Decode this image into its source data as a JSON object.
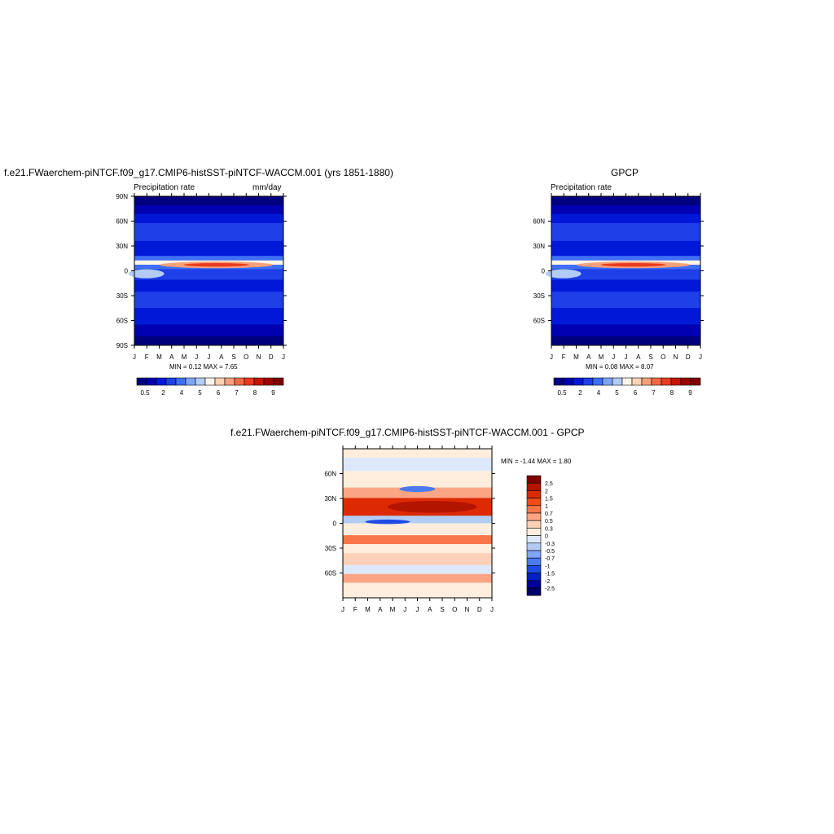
{
  "chart_data": [
    {
      "type": "heatmap",
      "title": "f.e21.FWaerchem-piNTCF.f09_g17.CMIP6-histSST-piNTCF-WACCM.001 (yrs 1851-1880)",
      "left_label": "Precipitation rate",
      "right_label": "mm/day",
      "x_ticks": [
        "J",
        "F",
        "M",
        "A",
        "M",
        "J",
        "J",
        "A",
        "S",
        "O",
        "N",
        "D",
        "J"
      ],
      "y_ticks": [
        "90N",
        "60N",
        "30N",
        "0",
        "30S",
        "60S",
        "90S"
      ],
      "stats": "MIN =   0.12 MAX =   7.65",
      "colorbar_labels": [
        "0.5",
        "2",
        "4",
        "5",
        "6",
        "7",
        "8",
        "9"
      ]
    },
    {
      "type": "heatmap",
      "title": "GPCP",
      "left_label": "Precipitation rate",
      "x_ticks": [
        "J",
        "F",
        "M",
        "A",
        "M",
        "J",
        "J",
        "A",
        "S",
        "O",
        "N",
        "D",
        "J"
      ],
      "y_ticks": [
        "60N",
        "30N",
        "0",
        "30S",
        "60S"
      ],
      "stats": "MIN =   0.08 MAX =   8.07",
      "colorbar_labels": [
        "0.5",
        "2",
        "4",
        "5",
        "6",
        "7",
        "8",
        "9"
      ]
    },
    {
      "type": "heatmap",
      "title": "f.e21.FWaerchem-piNTCF.f09_g17.CMIP6-histSST-piNTCF-WACCM.001 - GPCP",
      "x_ticks": [
        "J",
        "F",
        "M",
        "A",
        "M",
        "J",
        "J",
        "A",
        "S",
        "O",
        "N",
        "D",
        "J"
      ],
      "y_ticks": [
        "60N",
        "30N",
        "0",
        "30S",
        "60S"
      ],
      "stats": "MIN =  -1.44 MAX =   1.80",
      "colorbar_labels": [
        "2.5",
        "2",
        "1.5",
        "1",
        "0.7",
        "0.5",
        "0.3",
        "0",
        "-0.3",
        "-0.5",
        "-0.7",
        "-1",
        "-1.5",
        "-2",
        "-2.5"
      ]
    }
  ],
  "colors": {
    "precip_scale": [
      "#00007f",
      "#0000b2",
      "#0019d8",
      "#1f3fe8",
      "#3f6ff5",
      "#7fa3f5",
      "#b2ccf5",
      "#fff5ea",
      "#fcd1b4",
      "#f9a07a",
      "#f46a46",
      "#ea3b1f",
      "#c61400",
      "#9e0000",
      "#7f0000"
    ],
    "diff_scale": [
      "#7f0000",
      "#b21400",
      "#dd2a05",
      "#f24a1a",
      "#f8754a",
      "#fba584",
      "#fdd0b8",
      "#ffeedd",
      "#dde8fa",
      "#b2ccf5",
      "#7fa3f5",
      "#4a79f0",
      "#1f4ae6",
      "#0020c8",
      "#00009a",
      "#00006a"
    ]
  }
}
